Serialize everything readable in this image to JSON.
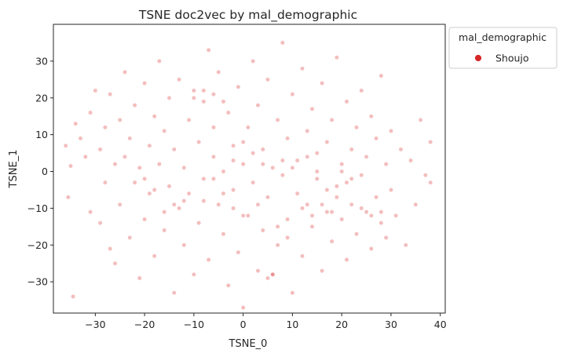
{
  "chart_data": {
    "type": "scatter",
    "title": "TSNE doc2vec by mal_demographic",
    "xlabel": "TSNE_0",
    "ylabel": "TSNE_1",
    "xlim": [
      -38.5,
      41
    ],
    "ylim": [
      -38.5,
      40
    ],
    "xticks": [
      -30,
      -20,
      -10,
      0,
      10,
      20,
      30,
      40
    ],
    "yticks": [
      -30,
      -20,
      -10,
      0,
      10,
      20,
      30
    ],
    "grid": false,
    "legend": {
      "title": "mal_demographic",
      "placement": "outside-right-top"
    },
    "series": [
      {
        "name": "Shoujo",
        "color": "#d62728",
        "alpha": 0.3,
        "points": [
          [
            -36,
            7
          ],
          [
            -35.5,
            -7
          ],
          [
            -35,
            1.5
          ],
          [
            -34.5,
            -34
          ],
          [
            -34,
            13
          ],
          [
            -33,
            9
          ],
          [
            -32,
            4
          ],
          [
            -31,
            -11
          ],
          [
            -31,
            16
          ],
          [
            -30,
            22
          ],
          [
            -29,
            -14
          ],
          [
            -29,
            6
          ],
          [
            -28,
            -3
          ],
          [
            -28,
            12
          ],
          [
            -27,
            21
          ],
          [
            -27,
            -21
          ],
          [
            -26,
            2
          ],
          [
            -26,
            -25
          ],
          [
            -25,
            14
          ],
          [
            -25,
            -9
          ],
          [
            -24,
            4
          ],
          [
            -24,
            27
          ],
          [
            -23,
            -18
          ],
          [
            -23,
            9
          ],
          [
            -22,
            -3
          ],
          [
            -22,
            18
          ],
          [
            -21,
            -29
          ],
          [
            -21,
            1
          ],
          [
            -20,
            24
          ],
          [
            -20,
            -13
          ],
          [
            -19,
            7
          ],
          [
            -19,
            -6
          ],
          [
            -18,
            15
          ],
          [
            -18,
            -23
          ],
          [
            -17,
            2
          ],
          [
            -17,
            30
          ],
          [
            -16,
            -16
          ],
          [
            -16,
            11
          ],
          [
            -15,
            -4
          ],
          [
            -15,
            20
          ],
          [
            -14,
            -33
          ],
          [
            -14,
            6
          ],
          [
            -13,
            -10
          ],
          [
            -13,
            25
          ],
          [
            -12,
            1
          ],
          [
            -12,
            -20
          ],
          [
            -11,
            14
          ],
          [
            -11,
            -6
          ],
          [
            -10,
            22
          ],
          [
            -10,
            -28
          ],
          [
            -9,
            8
          ],
          [
            -9,
            -14
          ],
          [
            -8,
            19
          ],
          [
            -8,
            -2
          ],
          [
            -7,
            33
          ],
          [
            -7,
            -24
          ],
          [
            -6,
            4
          ],
          [
            -6,
            12
          ],
          [
            -5,
            -9
          ],
          [
            -5,
            27
          ],
          [
            -4,
            -17
          ],
          [
            -4,
            0
          ],
          [
            -3,
            16
          ],
          [
            -3,
            -31
          ],
          [
            -2,
            7
          ],
          [
            -2,
            -5
          ],
          [
            -1,
            23
          ],
          [
            -1,
            -22
          ],
          [
            0,
            2
          ],
          [
            0,
            -37
          ],
          [
            1,
            12
          ],
          [
            1,
            -12
          ],
          [
            2,
            30
          ],
          [
            2,
            -3
          ],
          [
            3,
            18
          ],
          [
            3,
            -27
          ],
          [
            4,
            6
          ],
          [
            4,
            -16
          ],
          [
            5,
            25
          ],
          [
            5,
            -7
          ],
          [
            6,
            1
          ],
          [
            6,
            -28
          ],
          [
            7,
            14
          ],
          [
            7,
            -20
          ],
          [
            8,
            35
          ],
          [
            8,
            -1
          ],
          [
            9,
            9
          ],
          [
            9,
            -13
          ],
          [
            10,
            21
          ],
          [
            10,
            -33
          ],
          [
            11,
            3
          ],
          [
            11,
            -6
          ],
          [
            12,
            28
          ],
          [
            12,
            -23
          ],
          [
            13,
            11
          ],
          [
            13,
            -9
          ],
          [
            14,
            17
          ],
          [
            14,
            -15
          ],
          [
            15,
            5
          ],
          [
            15,
            -2
          ],
          [
            16,
            24
          ],
          [
            16,
            -27
          ],
          [
            17,
            8
          ],
          [
            17,
            -11
          ],
          [
            18,
            14
          ],
          [
            18,
            -19
          ],
          [
            19,
            -4
          ],
          [
            19,
            31
          ],
          [
            20,
            2
          ],
          [
            20,
            -13
          ],
          [
            21,
            19
          ],
          [
            21,
            -24
          ],
          [
            22,
            6
          ],
          [
            22,
            -9
          ],
          [
            23,
            12
          ],
          [
            23,
            -17
          ],
          [
            24,
            -1
          ],
          [
            24,
            22
          ],
          [
            25,
            -11
          ],
          [
            25,
            4
          ],
          [
            26,
            15
          ],
          [
            26,
            -21
          ],
          [
            27,
            -7
          ],
          [
            27,
            9
          ],
          [
            28,
            -14
          ],
          [
            28,
            26
          ],
          [
            29,
            2
          ],
          [
            29,
            -18
          ],
          [
            30,
            11
          ],
          [
            30,
            -5
          ],
          [
            31,
            -12
          ],
          [
            32,
            6
          ],
          [
            33,
            -20
          ],
          [
            34,
            3
          ],
          [
            35,
            -9
          ],
          [
            36,
            14
          ],
          [
            37,
            -1
          ],
          [
            38,
            8
          ],
          [
            38,
            -3
          ],
          [
            -8,
            22
          ],
          [
            -6,
            21
          ],
          [
            -10,
            20
          ],
          [
            -4,
            19
          ],
          [
            12,
            -10
          ],
          [
            14,
            -12
          ],
          [
            16,
            -9
          ],
          [
            18,
            -11
          ],
          [
            24,
            -10
          ],
          [
            26,
            -12
          ],
          [
            28,
            -11
          ],
          [
            6,
            -28
          ],
          [
            5,
            -29
          ],
          [
            20,
            0
          ],
          [
            22,
            -2
          ],
          [
            4,
            2
          ],
          [
            2,
            5
          ],
          [
            0,
            8
          ],
          [
            -2,
            3
          ],
          [
            8,
            3
          ],
          [
            10,
            1
          ],
          [
            15,
            0
          ],
          [
            17,
            -5
          ],
          [
            19,
            -7
          ],
          [
            21,
            -3
          ],
          [
            13,
            4
          ],
          [
            -12,
            -8
          ],
          [
            -14,
            -9
          ],
          [
            -16,
            -11
          ],
          [
            -18,
            -5
          ],
          [
            -20,
            -2
          ],
          [
            -6,
            -2
          ],
          [
            -4,
            -6
          ],
          [
            -8,
            -8
          ],
          [
            -2,
            -10
          ],
          [
            0,
            -12
          ],
          [
            3,
            -9
          ],
          [
            7,
            -15
          ],
          [
            9,
            -18
          ]
        ]
      }
    ]
  }
}
